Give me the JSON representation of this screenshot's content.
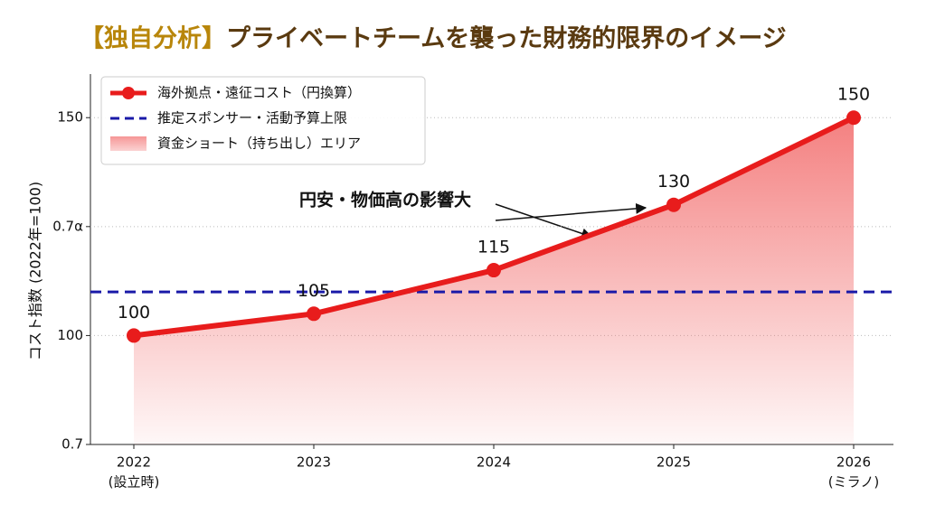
{
  "chart_data": {
    "type": "line",
    "title_tag": "【独自分析】",
    "title": "プライベートチームを襲った財務的限界のイメージ",
    "ylabel": "コスト指数 (2022年=100)",
    "categories": [
      "2022",
      "2023",
      "2024",
      "2025",
      "2026"
    ],
    "category_notes": [
      "(設立時)",
      null,
      null,
      null,
      "(ミラノ)"
    ],
    "series": [
      {
        "name": "海外拠点・遠征コスト（円換算）",
        "color": "#e81c1c",
        "values": [
          100,
          105,
          115,
          130,
          150
        ]
      }
    ],
    "reference_line": {
      "name": "推定スポンサー・活動予算上限",
      "color": "#1a1aa8",
      "value": 110
    },
    "fill_area": {
      "name": "資金ショート（持ち出し）エリア",
      "color": "#f26a6a"
    },
    "annotation": "円安・物価高の影響大",
    "ylim": [
      75,
      160
    ],
    "yticks": [
      {
        "value": 75,
        "label": "0.7"
      },
      100,
      {
        "value": 125,
        "label": "0.7α"
      },
      150
    ],
    "grid": true,
    "legend": "upper-left"
  }
}
